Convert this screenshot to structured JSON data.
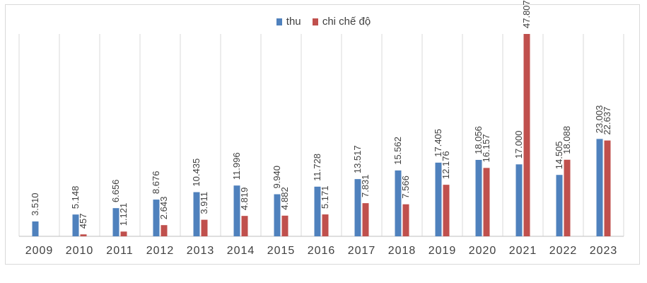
{
  "chart_data": {
    "type": "bar",
    "categories": [
      "2009",
      "2010",
      "2011",
      "2012",
      "2013",
      "2014",
      "2015",
      "2016",
      "2017",
      "2018",
      "2019",
      "2020",
      "2021",
      "2022",
      "2023"
    ],
    "series": [
      {
        "name": "thu",
        "color": "#4f81bd",
        "values": [
          3510,
          5148,
          6656,
          8676,
          10435,
          11996,
          9940,
          11728,
          13517,
          15562,
          17405,
          18056,
          17000,
          14505,
          23003
        ],
        "labels": [
          "3.510",
          "5.148",
          "6.656",
          "8.676",
          "10.435",
          "11.996",
          "9.940",
          "11.728",
          "13.517",
          "15.562",
          "17.405",
          "18.056",
          "17.000",
          "14.505",
          "23.003"
        ]
      },
      {
        "name": "chi chế độ",
        "color": "#c0504d",
        "values": [
          null,
          457,
          1121,
          2643,
          3911,
          4819,
          4882,
          5171,
          7831,
          7566,
          12176,
          16157,
          47807,
          18088,
          22637
        ],
        "labels": [
          "",
          "457",
          "1.121",
          "2.643",
          "3.911",
          "4.819",
          "4.882",
          "5.171",
          "7.831",
          "7.566",
          "12.176",
          "16.157",
          "47.807",
          "18.088",
          "22.637"
        ]
      }
    ],
    "ylim": [
      0,
      60000
    ],
    "grid": "vertical",
    "legend_position": "top-center"
  }
}
